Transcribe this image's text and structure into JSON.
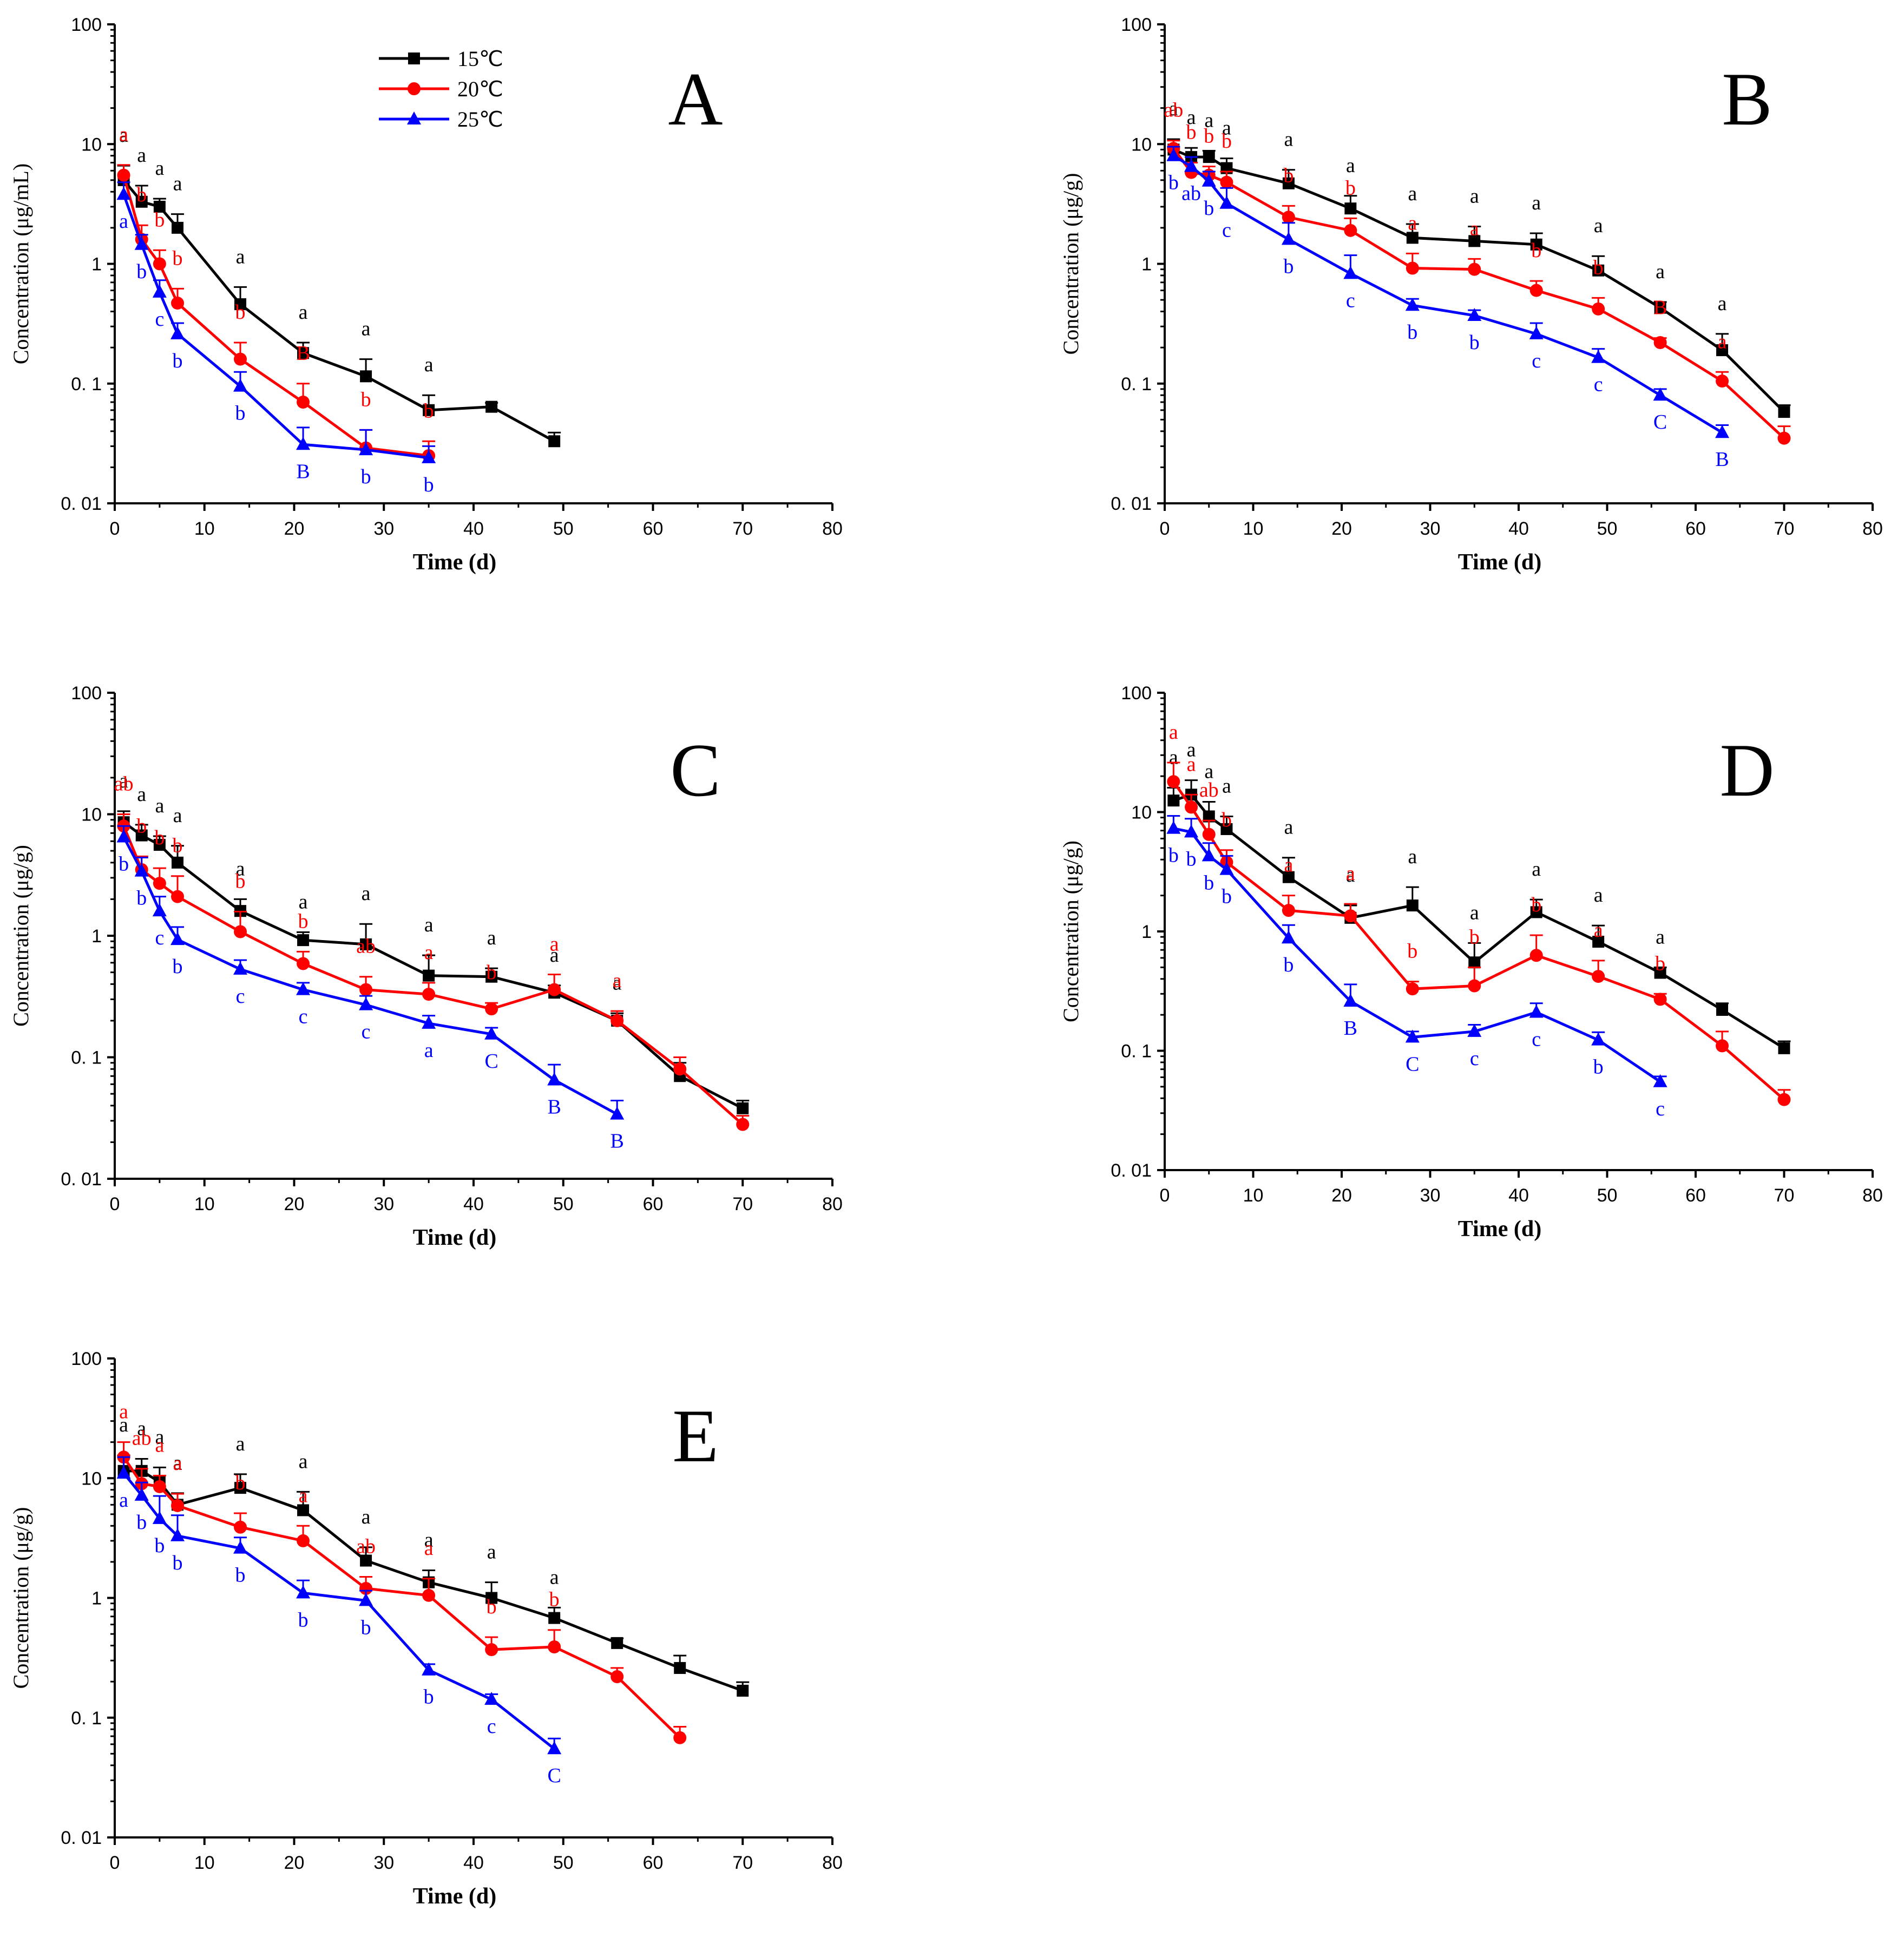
{
  "legend": [
    "15℃",
    "20℃",
    "25℃"
  ],
  "colors": {
    "15℃": "#000000",
    "20℃": "#ff0000",
    "25℃": "#0000ff"
  },
  "chart_data": [
    {
      "panel": "A",
      "type": "line",
      "ylabel": "Concentration (μg/mL)",
      "xlabel": "Time (d)",
      "yscale": "log",
      "ylim": [
        0.01,
        100
      ],
      "xlim": [
        0,
        80
      ],
      "xticks": [
        "0",
        "10",
        "20",
        "30",
        "40",
        "50",
        "60",
        "70",
        "80"
      ],
      "yticks": [
        "0. 01",
        "0. 1",
        "1",
        "10",
        "100"
      ],
      "legend_position": "top-center",
      "series": [
        {
          "name": "15℃",
          "marker": "square",
          "x": [
            1,
            3,
            5,
            7,
            14,
            21,
            28,
            35,
            42,
            49
          ],
          "y": [
            5.0,
            3.3,
            3.0,
            2.0,
            0.46,
            0.18,
            0.115,
            0.06,
            0.064,
            0.033
          ],
          "err": [
            1.6,
            1.2,
            0.5,
            0.6,
            0.18,
            0.04,
            0.045,
            0.02,
            0.005,
            0.006
          ],
          "labels": [
            "a",
            "a",
            "a",
            "a",
            "a",
            "a",
            "a",
            "a",
            "",
            ""
          ]
        },
        {
          "name": "20℃",
          "marker": "circle",
          "x": [
            1,
            3,
            5,
            7,
            14,
            21,
            28,
            35
          ],
          "y": [
            5.5,
            1.6,
            1.0,
            0.47,
            0.16,
            0.07,
            0.029,
            0.025
          ],
          "err": [
            1.2,
            0.5,
            0.3,
            0.15,
            0.06,
            0.03,
            0.012,
            0.008
          ],
          "labels": [
            "a",
            "b",
            "b",
            "b",
            "b",
            "B",
            "b",
            "b"
          ]
        },
        {
          "name": "25℃",
          "marker": "triangle",
          "x": [
            1,
            3,
            5,
            7,
            14,
            21,
            28,
            35
          ],
          "y": [
            3.8,
            1.45,
            0.58,
            0.26,
            0.095,
            0.031,
            0.028,
            0.024
          ],
          "err": [
            1.0,
            0.3,
            0.15,
            0.06,
            0.03,
            0.012,
            0.013,
            0.006
          ],
          "labels": [
            "a",
            "b",
            "c",
            "b",
            "b",
            "B",
            "b",
            "b"
          ]
        }
      ]
    },
    {
      "panel": "B",
      "type": "line",
      "ylabel": "Concentration (μg/g)",
      "xlabel": "Time (d)",
      "yscale": "log",
      "ylim": [
        0.01,
        100
      ],
      "xlim": [
        0,
        80
      ],
      "xticks": [
        "0",
        "10",
        "20",
        "30",
        "40",
        "50",
        "60",
        "70",
        "80"
      ],
      "yticks": [
        "0. 01",
        "0. 1",
        "1",
        "10",
        "100"
      ],
      "series": [
        {
          "name": "15℃",
          "marker": "square",
          "x": [
            1,
            3,
            5,
            7,
            14,
            21,
            28,
            35,
            42,
            49,
            56,
            63,
            70
          ],
          "y": [
            9.0,
            7.8,
            7.8,
            6.3,
            4.7,
            2.9,
            1.65,
            1.55,
            1.45,
            0.88,
            0.43,
            0.19,
            0.058
          ],
          "err": [
            2.0,
            1.5,
            1.0,
            1.3,
            1.4,
            0.8,
            0.5,
            0.5,
            0.35,
            0.28,
            0.05,
            0.07,
            0.008
          ],
          "labels": [
            "a",
            "a",
            "a",
            "a",
            "a",
            "a",
            "a",
            "a",
            "a",
            "a",
            "a",
            "a",
            ""
          ]
        },
        {
          "name": "20℃",
          "marker": "circle",
          "x": [
            1,
            3,
            5,
            7,
            14,
            21,
            28,
            35,
            42,
            49,
            56,
            63,
            70
          ],
          "y": [
            9.2,
            5.8,
            5.5,
            4.8,
            2.45,
            1.9,
            0.92,
            0.9,
            0.6,
            0.42,
            0.22,
            0.105,
            0.035
          ],
          "err": [
            1.5,
            1.2,
            1.0,
            1.1,
            0.6,
            0.5,
            0.3,
            0.2,
            0.12,
            0.1,
            0.02,
            0.02,
            0.009
          ],
          "labels": [
            "ab",
            "b",
            "b",
            "b",
            "b",
            "b",
            "a",
            "a",
            "b",
            "b",
            "B",
            "a",
            ""
          ]
        },
        {
          "name": "25℃",
          "marker": "triangle",
          "x": [
            1,
            3,
            5,
            7,
            14,
            21,
            28,
            35,
            42,
            49,
            56,
            63
          ],
          "y": [
            8.0,
            6.5,
            4.9,
            3.2,
            1.6,
            0.83,
            0.45,
            0.37,
            0.26,
            0.165,
            0.08,
            0.039
          ],
          "err": [
            1.5,
            1.3,
            1.0,
            1.1,
            0.6,
            0.35,
            0.06,
            0.04,
            0.06,
            0.03,
            0.01,
            0.006
          ],
          "labels": [
            "b",
            "ab",
            "b",
            "c",
            "b",
            "c",
            "b",
            "b",
            "c",
            "c",
            "C",
            "B"
          ]
        }
      ]
    },
    {
      "panel": "C",
      "type": "line",
      "ylabel": "Concentration (μg/g)",
      "xlabel": "Time (d)",
      "yscale": "log",
      "ylim": [
        0.01,
        100
      ],
      "xlim": [
        0,
        80
      ],
      "xticks": [
        "0",
        "10",
        "20",
        "30",
        "40",
        "50",
        "60",
        "70",
        "80"
      ],
      "yticks": [
        "0. 01",
        "0. 1",
        "1",
        "10",
        "100"
      ],
      "series": [
        {
          "name": "15℃",
          "marker": "square",
          "x": [
            1,
            3,
            5,
            7,
            14,
            21,
            28,
            35,
            42,
            49,
            56,
            63,
            70
          ],
          "y": [
            8.6,
            6.7,
            5.6,
            4.0,
            1.6,
            0.92,
            0.85,
            0.47,
            0.46,
            0.34,
            0.2,
            0.07,
            0.038
          ],
          "err": [
            2.0,
            1.5,
            1.0,
            1.5,
            0.4,
            0.15,
            0.4,
            0.22,
            0.08,
            0.05,
            0.03,
            0.02,
            0.006
          ],
          "labels": [
            "a",
            "a",
            "a",
            "a",
            "a",
            "a",
            "a",
            "a",
            "a",
            "a",
            "a",
            "",
            ""
          ]
        },
        {
          "name": "20℃",
          "marker": "circle",
          "x": [
            1,
            3,
            5,
            7,
            14,
            21,
            28,
            35,
            42,
            49,
            56,
            63,
            70
          ],
          "y": [
            8.0,
            3.5,
            2.7,
            2.1,
            1.08,
            0.59,
            0.36,
            0.33,
            0.25,
            0.36,
            0.2,
            0.08,
            0.028
          ],
          "err": [
            2.0,
            1.0,
            0.9,
            1.0,
            0.5,
            0.15,
            0.1,
            0.08,
            0.03,
            0.12,
            0.04,
            0.02,
            0.005
          ],
          "labels": [
            "ab",
            "b",
            "b",
            "b",
            "b",
            "b",
            "ab",
            "a",
            "b",
            "a",
            "a",
            "",
            ""
          ]
        },
        {
          "name": "25℃",
          "marker": "triangle",
          "x": [
            1,
            3,
            5,
            7,
            14,
            21,
            28,
            35,
            42,
            49,
            56
          ],
          "y": [
            6.5,
            3.4,
            1.6,
            0.93,
            0.53,
            0.36,
            0.27,
            0.19,
            0.155,
            0.065,
            0.034
          ],
          "err": [
            1.5,
            1.0,
            0.5,
            0.25,
            0.1,
            0.05,
            0.05,
            0.03,
            0.02,
            0.022,
            0.01
          ],
          "labels": [
            "b",
            "b",
            "c",
            "b",
            "c",
            "c",
            "c",
            "a",
            "C",
            "B",
            "B"
          ]
        }
      ]
    },
    {
      "panel": "D",
      "type": "line",
      "ylabel": "Concentration (μg/g)",
      "xlabel": "Time (d)",
      "yscale": "log",
      "ylim": [
        0.01,
        100
      ],
      "xlim": [
        0,
        80
      ],
      "xticks": [
        "0",
        "10",
        "20",
        "30",
        "40",
        "50",
        "60",
        "70",
        "80"
      ],
      "yticks": [
        "0. 01",
        "0. 1",
        "1",
        "10",
        "100"
      ],
      "series": [
        {
          "name": "15℃",
          "marker": "square",
          "x": [
            1,
            3,
            5,
            7,
            14,
            21,
            28,
            35,
            42,
            49,
            56,
            63,
            70
          ],
          "y": [
            12.5,
            14.0,
            9.2,
            7.2,
            2.85,
            1.3,
            1.65,
            0.55,
            1.45,
            0.82,
            0.45,
            0.22,
            0.105
          ],
          "err": [
            3.5,
            4.5,
            3.0,
            2.0,
            1.3,
            0.35,
            0.7,
            0.25,
            0.4,
            0.3,
            0.05,
            0.03,
            0.015
          ],
          "labels": [
            "a",
            "a",
            "a",
            "a",
            "a",
            "a",
            "a",
            "a",
            "a",
            "a",
            "a",
            "",
            ""
          ]
        },
        {
          "name": "20℃",
          "marker": "circle",
          "x": [
            1,
            3,
            5,
            7,
            14,
            21,
            28,
            35,
            42,
            49,
            56,
            63,
            70
          ],
          "y": [
            18.0,
            11.0,
            6.5,
            3.8,
            1.5,
            1.35,
            0.33,
            0.35,
            0.63,
            0.42,
            0.27,
            0.11,
            0.039
          ],
          "err": [
            8.0,
            3.0,
            2.0,
            1.0,
            0.5,
            0.35,
            0.05,
            0.15,
            0.3,
            0.15,
            0.03,
            0.035,
            0.008
          ],
          "labels": [
            "a",
            "a",
            "ab",
            "b",
            "a",
            "a",
            "b",
            "b",
            "b",
            "a",
            "b",
            "",
            ""
          ]
        },
        {
          "name": "25℃",
          "marker": "triangle",
          "x": [
            1,
            3,
            5,
            7,
            14,
            21,
            28,
            35,
            42,
            49,
            56
          ],
          "y": [
            7.3,
            6.8,
            4.3,
            3.3,
            0.88,
            0.26,
            0.13,
            0.145,
            0.21,
            0.123,
            0.055
          ],
          "err": [
            2.0,
            2.0,
            1.2,
            1.0,
            0.25,
            0.1,
            0.015,
            0.02,
            0.04,
            0.02,
            0.006
          ],
          "labels": [
            "b",
            "b",
            "b",
            "b",
            "b",
            "B",
            "C",
            "c",
            "c",
            "b",
            "c"
          ]
        }
      ]
    },
    {
      "panel": "E",
      "type": "line",
      "ylabel": "Concentration (μg/g)",
      "xlabel": "Time (d)",
      "yscale": "log",
      "ylim": [
        0.01,
        100
      ],
      "xlim": [
        0,
        80
      ],
      "xticks": [
        "0",
        "10",
        "20",
        "30",
        "40",
        "50",
        "60",
        "70",
        "80"
      ],
      "yticks": [
        "0. 01",
        "0. 1",
        "1",
        "10",
        "100"
      ],
      "series": [
        {
          "name": "15℃",
          "marker": "square",
          "x": [
            1,
            3,
            5,
            7,
            14,
            21,
            28,
            35,
            42,
            49,
            56,
            63,
            70
          ],
          "y": [
            11.5,
            11.5,
            9.3,
            6.0,
            8.3,
            5.4,
            2.05,
            1.35,
            1.0,
            0.68,
            0.42,
            0.26,
            0.168
          ],
          "err": [
            4.0,
            3.0,
            3.0,
            1.5,
            2.5,
            2.3,
            0.6,
            0.35,
            0.35,
            0.15,
            0.04,
            0.07,
            0.03
          ],
          "labels": [
            "a",
            "a",
            "a",
            "a",
            "a",
            "a",
            "a",
            "a",
            "a",
            "a",
            "",
            "",
            ""
          ]
        },
        {
          "name": "20℃",
          "marker": "circle",
          "x": [
            1,
            3,
            5,
            7,
            14,
            21,
            28,
            35,
            42,
            49,
            56,
            63
          ],
          "y": [
            15.0,
            9.0,
            8.5,
            5.9,
            3.9,
            3.0,
            1.2,
            1.05,
            0.37,
            0.39,
            0.22,
            0.068
          ],
          "err": [
            5.0,
            3.0,
            2.0,
            1.5,
            1.2,
            1.0,
            0.3,
            0.4,
            0.1,
            0.15,
            0.04,
            0.016
          ],
          "labels": [
            "a",
            "ab",
            "a",
            "a",
            "b",
            "a",
            "ab",
            "a",
            "b",
            "b",
            "",
            ""
          ]
        },
        {
          "name": "25℃",
          "marker": "triangle",
          "x": [
            1,
            3,
            5,
            7,
            14,
            21,
            28,
            35,
            42,
            49
          ],
          "y": [
            11.0,
            7.2,
            4.6,
            3.3,
            2.6,
            1.1,
            0.95,
            0.25,
            0.142,
            0.055
          ],
          "err": [
            4.0,
            2.0,
            2.5,
            1.6,
            0.6,
            0.3,
            0.2,
            0.03,
            0.015,
            0.012
          ],
          "labels": [
            "a",
            "b",
            "b",
            "b",
            "b",
            "b",
            "b",
            "b",
            "c",
            "C"
          ]
        }
      ]
    }
  ]
}
